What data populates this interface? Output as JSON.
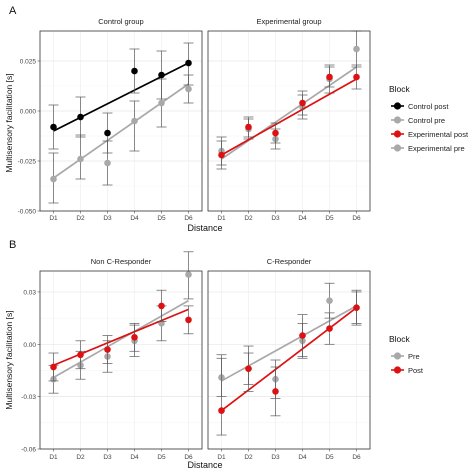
{
  "figure": {
    "panel_a_label": "A",
    "panel_b_label": "B",
    "x_title": "Distance",
    "y_title": "Multisensory facilitation [s]",
    "legend_title": "Block"
  },
  "chart_data": [
    {
      "type": "line",
      "panel": "A",
      "ylim": [
        -0.05,
        0.04
      ],
      "ytick_values": [
        -0.05,
        -0.025,
        0.0,
        0.025
      ],
      "ytick_labels": [
        "-0.050",
        "-0.025",
        "0.000",
        "0.025"
      ],
      "grid": true,
      "legend": {
        "title": "Block",
        "position": "right",
        "entries": [
          {
            "label": "Control post",
            "color": "#000000"
          },
          {
            "label": "Control pre",
            "color": "#a9a9a9"
          },
          {
            "label": "Experimental post",
            "color": "#dd1111"
          },
          {
            "label": "Experimental pre",
            "color": "#a9a9a9"
          }
        ]
      },
      "facets": [
        {
          "title": "Control group",
          "categories": [
            "D1",
            "D2",
            "D3",
            "D4",
            "D5",
            "D6"
          ],
          "series": [
            {
              "name": "Control pre",
              "color": "#a9a9a9",
              "order": 0,
              "values": [
                -0.034,
                -0.024,
                -0.026,
                -0.005,
                0.004,
                0.011
              ],
              "ci_low": [
                -0.046,
                -0.034,
                -0.037,
                -0.02,
                -0.008,
                0.004
              ],
              "ci_high": [
                -0.021,
                -0.012,
                -0.015,
                0.005,
                0.016,
                0.018
              ],
              "fit": [
                -0.0335,
                0.0135
              ]
            },
            {
              "name": "Control post",
              "color": "#000000",
              "order": 1,
              "values": [
                -0.008,
                -0.003,
                -0.011,
                0.02,
                0.018,
                0.024
              ],
              "ci_low": [
                -0.019,
                -0.013,
                -0.021,
                0.009,
                0.006,
                0.013
              ],
              "ci_high": [
                0.003,
                0.007,
                -0.001,
                0.031,
                0.03,
                0.034
              ],
              "fit": [
                -0.01,
                0.024
              ]
            }
          ]
        },
        {
          "title": "Experimental group",
          "categories": [
            "D1",
            "D2",
            "D3",
            "D4",
            "D5",
            "D6"
          ],
          "series": [
            {
              "name": "Experimental pre",
              "color": "#a9a9a9",
              "order": 0,
              "values": [
                -0.02,
                -0.009,
                -0.014,
                0.002,
                0.016,
                0.031
              ],
              "ci_low": [
                -0.027,
                -0.014,
                -0.019,
                -0.004,
                0.009,
                0.022
              ],
              "ci_high": [
                -0.013,
                -0.004,
                -0.009,
                0.008,
                0.023,
                0.04
              ],
              "fit": [
                -0.024,
                0.022
              ]
            },
            {
              "name": "Experimental post",
              "color": "#dd1111",
              "order": 1,
              "values": [
                -0.022,
                -0.008,
                -0.011,
                0.004,
                0.017,
                0.017
              ],
              "ci_low": [
                -0.029,
                -0.013,
                -0.016,
                -0.002,
                0.012,
                0.011
              ],
              "ci_high": [
                -0.015,
                -0.003,
                -0.006,
                0.01,
                0.022,
                0.023
              ],
              "fit": [
                -0.022,
                0.016
              ]
            }
          ]
        }
      ]
    },
    {
      "type": "line",
      "panel": "B",
      "ylim": [
        -0.06,
        0.042
      ],
      "ytick_values": [
        -0.06,
        -0.03,
        0.0,
        0.03
      ],
      "ytick_labels": [
        "-0.06",
        "-0.03",
        "0.00",
        "0.03"
      ],
      "grid": true,
      "legend": {
        "title": "Block",
        "position": "right",
        "entries": [
          {
            "label": "Pre",
            "color": "#a9a9a9"
          },
          {
            "label": "Post",
            "color": "#dd1111"
          }
        ]
      },
      "facets": [
        {
          "title": "Non C-Responder",
          "categories": [
            "D1",
            "D2",
            "D3",
            "D4",
            "D5",
            "D6"
          ],
          "series": [
            {
              "name": "Pre",
              "color": "#a9a9a9",
              "order": 0,
              "values": [
                -0.02,
                -0.012,
                -0.007,
                0.002,
                0.012,
                0.04
              ],
              "ci_low": [
                -0.028,
                -0.02,
                -0.016,
                -0.007,
                0.002,
                0.026
              ],
              "ci_high": [
                -0.012,
                -0.004,
                0.002,
                0.011,
                0.022,
                0.053
              ],
              "fit": [
                -0.019,
                0.025
              ]
            },
            {
              "name": "Post",
              "color": "#dd1111",
              "order": 1,
              "values": [
                -0.013,
                -0.006,
                -0.003,
                0.004,
                0.022,
                0.014
              ],
              "ci_low": [
                -0.021,
                -0.014,
                -0.011,
                -0.004,
                0.013,
                0.006
              ],
              "ci_high": [
                -0.005,
                0.002,
                0.005,
                0.012,
                0.031,
                0.022
              ],
              "fit": [
                -0.012,
                0.02
              ]
            }
          ]
        },
        {
          "title": "C-Responder",
          "categories": [
            "D1",
            "D2",
            "D3",
            "D4",
            "D5",
            "D6"
          ],
          "series": [
            {
              "name": "Pre",
              "color": "#a9a9a9",
              "order": 0,
              "values": [
                -0.019,
                -0.014,
                -0.02,
                0.002,
                0.025,
                0.021
              ],
              "ci_low": [
                -0.03,
                -0.023,
                -0.031,
                -0.008,
                0.015,
                0.012
              ],
              "ci_high": [
                -0.008,
                -0.005,
                -0.009,
                0.012,
                0.035,
                0.03
              ],
              "fit": [
                -0.021,
                0.022
              ]
            },
            {
              "name": "Post",
              "color": "#dd1111",
              "order": 1,
              "values": [
                -0.038,
                -0.014,
                -0.027,
                0.005,
                0.009,
                0.021
              ],
              "ci_low": [
                -0.052,
                -0.027,
                -0.041,
                -0.007,
                0.0,
                0.011
              ],
              "ci_high": [
                -0.006,
                -0.001,
                -0.013,
                0.017,
                0.018,
                0.031
              ],
              "fit": [
                -0.038,
                0.021
              ]
            }
          ]
        }
      ]
    }
  ]
}
